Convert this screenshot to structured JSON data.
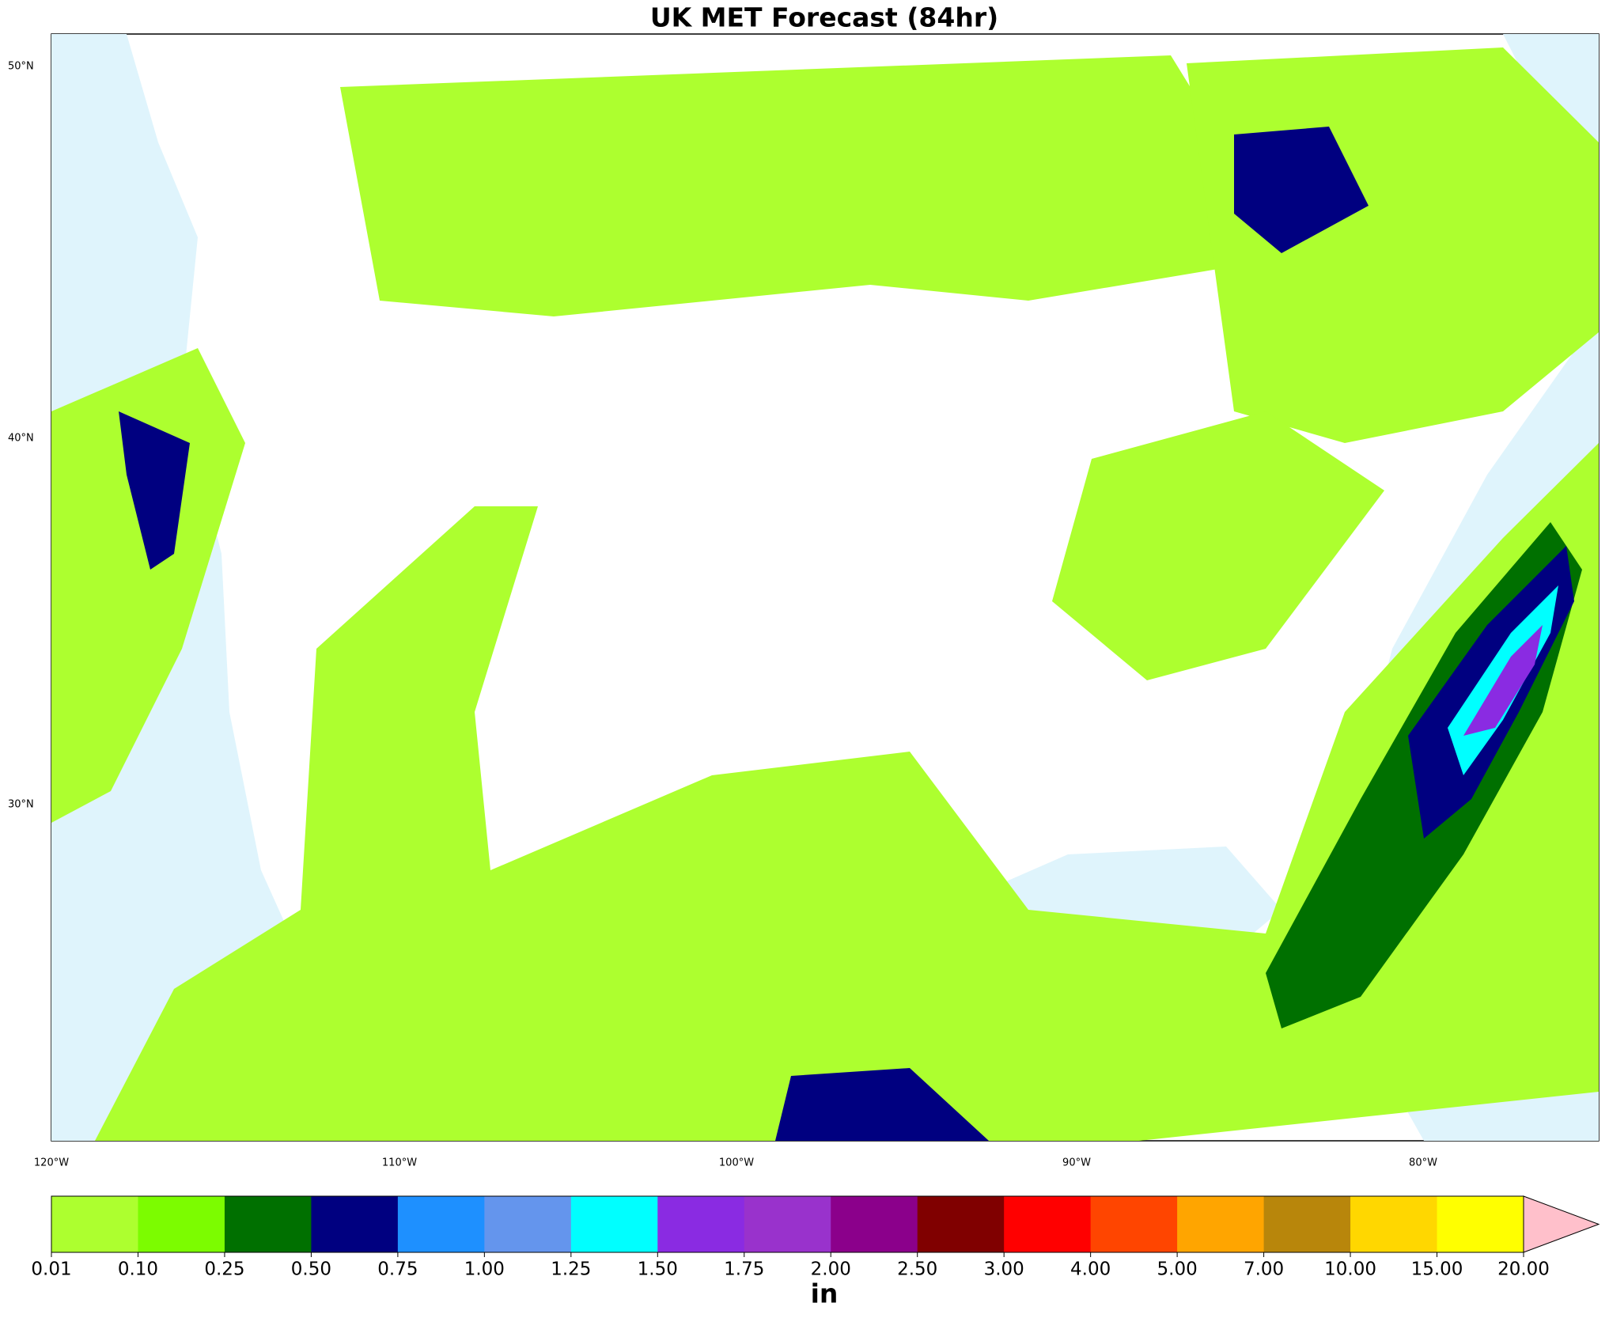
{
  "title": "UK MET Forecast (84hr)",
  "map": {
    "lat_labels": [
      "50°N",
      "40°N",
      "30°N"
    ],
    "lon_labels": [
      "120°W",
      "110°W",
      "100°W",
      "90°W",
      "80°W"
    ]
  },
  "colorbar": {
    "label": "in",
    "ticks": [
      0.01,
      {
        "value": 0.1,
        "label": "0.10"
      },
      0.25,
      {
        "value": 0.5,
        "label": "0.50"
      },
      0.75,
      {
        "value": 1,
        "label": "1.00"
      },
      1.25,
      {
        "value": 1.5,
        "label": "1.50"
      },
      1.75,
      {
        "value": 2,
        "label": "2.00"
      },
      {
        "value": 2.5,
        "label": "2.50"
      },
      {
        "value": 3,
        "label": "3.00"
      },
      {
        "value": 4,
        "label": "4.00"
      },
      {
        "value": 5,
        "label": "5.00"
      },
      {
        "value": 7,
        "label": "7.00"
      },
      {
        "value": 10,
        "label": "10.00"
      },
      {
        "value": 15,
        "label": "15.00"
      },
      {
        "value": 20,
        "label": "20.00"
      }
    ],
    "colors": [
      "#adff2f",
      "#7cfc00",
      "#007000",
      "#000080",
      "#1e90ff",
      "#6495ed",
      "#00ffff",
      "#8a2be2",
      "#9932cc",
      "#8b008b",
      "#800000",
      "#ff0000",
      "#ff4500",
      "#ffa500",
      "#b8860b",
      "#ffd700",
      "#ffff00"
    ],
    "extend_color": "#ffc0cb"
  }
}
